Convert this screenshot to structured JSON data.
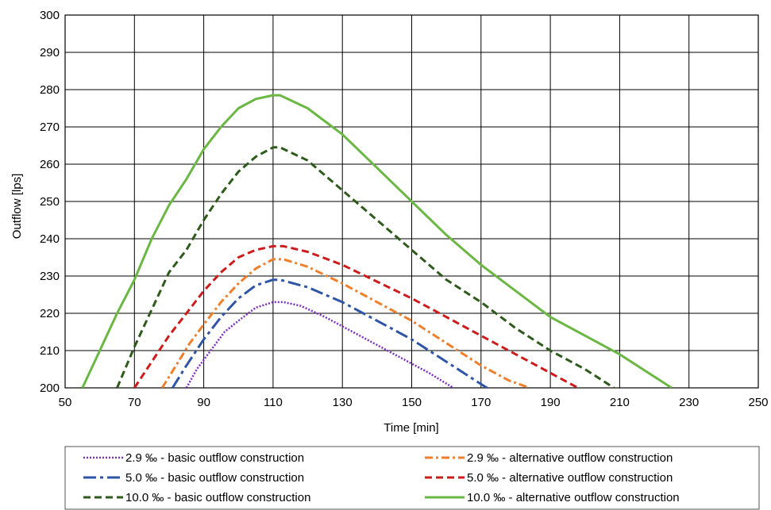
{
  "chart_data": {
    "type": "line",
    "title": "",
    "xlabel": "Time [min]",
    "ylabel": "Outflow [lps]",
    "xlim": [
      50,
      250
    ],
    "ylim": [
      200,
      300
    ],
    "xticks": [
      50,
      70,
      90,
      110,
      130,
      150,
      170,
      190,
      210,
      230,
      250
    ],
    "yticks": [
      200,
      210,
      220,
      230,
      240,
      250,
      260,
      270,
      280,
      290,
      300
    ],
    "grid": true,
    "legend_position": "bottom",
    "series": [
      {
        "name": "2.9 ‰ - basic outflow construction",
        "color": "#7b2fbe",
        "style": "dotted",
        "x": [
          85,
          88,
          92,
          96,
          100,
          105,
          110,
          113,
          118,
          125,
          135,
          145,
          155,
          162
        ],
        "y": [
          200,
          205,
          210,
          215,
          218,
          221.5,
          223,
          223,
          222,
          219,
          214,
          209,
          204,
          200
        ]
      },
      {
        "name": "2.9 ‰ - alternative outflow construction",
        "color": "#f07f2c",
        "style": "dashdot",
        "x": [
          78,
          82,
          86,
          90,
          95,
          100,
          105,
          110,
          113,
          120,
          130,
          140,
          150,
          160,
          170,
          178,
          184
        ],
        "y": [
          200,
          206,
          212,
          217,
          223,
          228,
          232,
          234.5,
          234.5,
          232.5,
          228,
          223,
          218,
          212,
          206,
          202,
          200
        ]
      },
      {
        "name": "5.0 ‰ - basic outflow construction",
        "color": "#2e55a6",
        "style": "longdashdot",
        "x": [
          81,
          85,
          90,
          95,
          100,
          105,
          110,
          112,
          120,
          130,
          140,
          150,
          160,
          170,
          177
        ],
        "y": [
          200,
          206,
          213,
          219,
          224,
          227.5,
          229,
          229,
          227,
          223,
          218,
          213,
          207,
          201,
          197
        ]
      },
      {
        "name": "5.0 ‰ - alternative outflow construction",
        "color": "#cc1c1c",
        "style": "dashed",
        "x": [
          70,
          75,
          80,
          85,
          90,
          95,
          100,
          105,
          110,
          113,
          120,
          130,
          140,
          150,
          160,
          170,
          180,
          190,
          198
        ],
        "y": [
          200,
          207,
          214,
          220,
          226,
          231,
          235,
          237,
          238,
          238,
          236.5,
          233,
          228.5,
          224,
          219,
          214,
          209,
          204,
          200
        ]
      },
      {
        "name": "10.0 ‰ - basic outflow construction",
        "color": "#2e5a1c",
        "style": "dashed",
        "x": [
          65,
          70,
          75,
          80,
          85,
          90,
          95,
          100,
          105,
          110,
          112,
          120,
          130,
          140,
          150,
          160,
          170,
          180,
          190,
          200,
          210
        ],
        "y": [
          200,
          211,
          221,
          231,
          237,
          245,
          252,
          258,
          262,
          264.5,
          264.5,
          261,
          253,
          245,
          237,
          229,
          223,
          216,
          210,
          205,
          199
        ]
      },
      {
        "name": "10.0 ‰ - alternative outflow construction",
        "color": "#6ab744",
        "style": "solid",
        "x": [
          55,
          60,
          65,
          70,
          75,
          80,
          85,
          90,
          95,
          100,
          105,
          110,
          112,
          120,
          130,
          140,
          150,
          160,
          170,
          180,
          190,
          200,
          210,
          220,
          225
        ],
        "y": [
          200,
          210,
          220,
          229,
          240,
          249,
          256,
          264,
          270,
          275,
          277.5,
          278.5,
          278.5,
          275,
          268,
          259,
          250,
          241,
          233,
          226,
          219,
          214,
          209,
          203,
          200
        ]
      }
    ]
  }
}
